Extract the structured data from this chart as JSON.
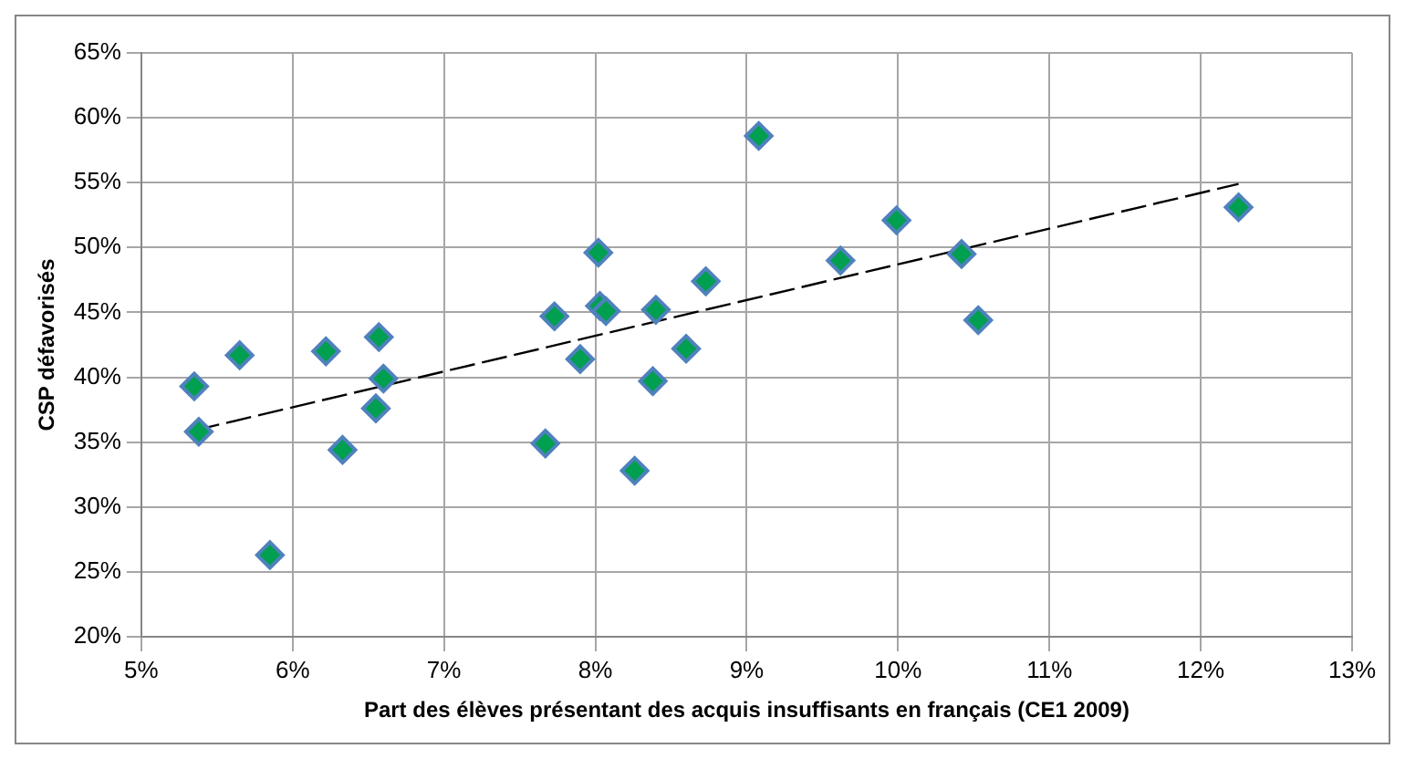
{
  "chart_data": {
    "type": "scatter",
    "xlabel": "Part des élèves présentant des acquis insuffisants en français (CE1 2009)",
    "ylabel": "CSP défavorisés",
    "xlim": [
      5,
      13
    ],
    "ylim": [
      20,
      65
    ],
    "xticks": [
      {
        "value": 5,
        "label": "5%"
      },
      {
        "value": 6,
        "label": "6%"
      },
      {
        "value": 7,
        "label": "7%"
      },
      {
        "value": 8,
        "label": "8%"
      },
      {
        "value": 9,
        "label": "9%"
      },
      {
        "value": 10,
        "label": "10%"
      },
      {
        "value": 11,
        "label": "11%"
      },
      {
        "value": 12,
        "label": "12%"
      },
      {
        "value": 13,
        "label": "13%"
      }
    ],
    "yticks": [
      {
        "value": 20,
        "label": "20%"
      },
      {
        "value": 25,
        "label": "25%"
      },
      {
        "value": 30,
        "label": "30%"
      },
      {
        "value": 35,
        "label": "35%"
      },
      {
        "value": 40,
        "label": "40%"
      },
      {
        "value": 45,
        "label": "45%"
      },
      {
        "value": 50,
        "label": "50%"
      },
      {
        "value": 55,
        "label": "55%"
      },
      {
        "value": 60,
        "label": "60%"
      },
      {
        "value": 65,
        "label": "65%"
      }
    ],
    "grid": true,
    "legend": false,
    "series": [
      {
        "type": "scatter",
        "color": "#00a050",
        "marker": "diamond",
        "x": [
          5.35,
          5.38,
          5.65,
          5.85,
          6.22,
          6.33,
          6.55,
          6.57,
          6.6,
          7.67,
          7.73,
          7.9,
          8.02,
          8.03,
          8.07,
          8.26,
          8.38,
          8.4,
          8.6,
          8.73,
          9.08,
          9.62,
          9.99,
          10.42,
          10.53,
          12.25
        ],
        "values": [
          39.3,
          35.8,
          41.7,
          26.3,
          42,
          34.4,
          37.6,
          43.1,
          39.9,
          34.9,
          44.7,
          41.4,
          49.6,
          45.5,
          45.1,
          32.8,
          39.7,
          45.2,
          42.2,
          47.4,
          58.6,
          49,
          52.1,
          49.5,
          44.4,
          53.1
        ]
      },
      {
        "type": "line",
        "color": "#000000",
        "line_style": "dashed",
        "marker": "none",
        "x": [
          5.35,
          12.25
        ],
        "values": [
          35.9,
          54.9
        ]
      }
    ]
  }
}
